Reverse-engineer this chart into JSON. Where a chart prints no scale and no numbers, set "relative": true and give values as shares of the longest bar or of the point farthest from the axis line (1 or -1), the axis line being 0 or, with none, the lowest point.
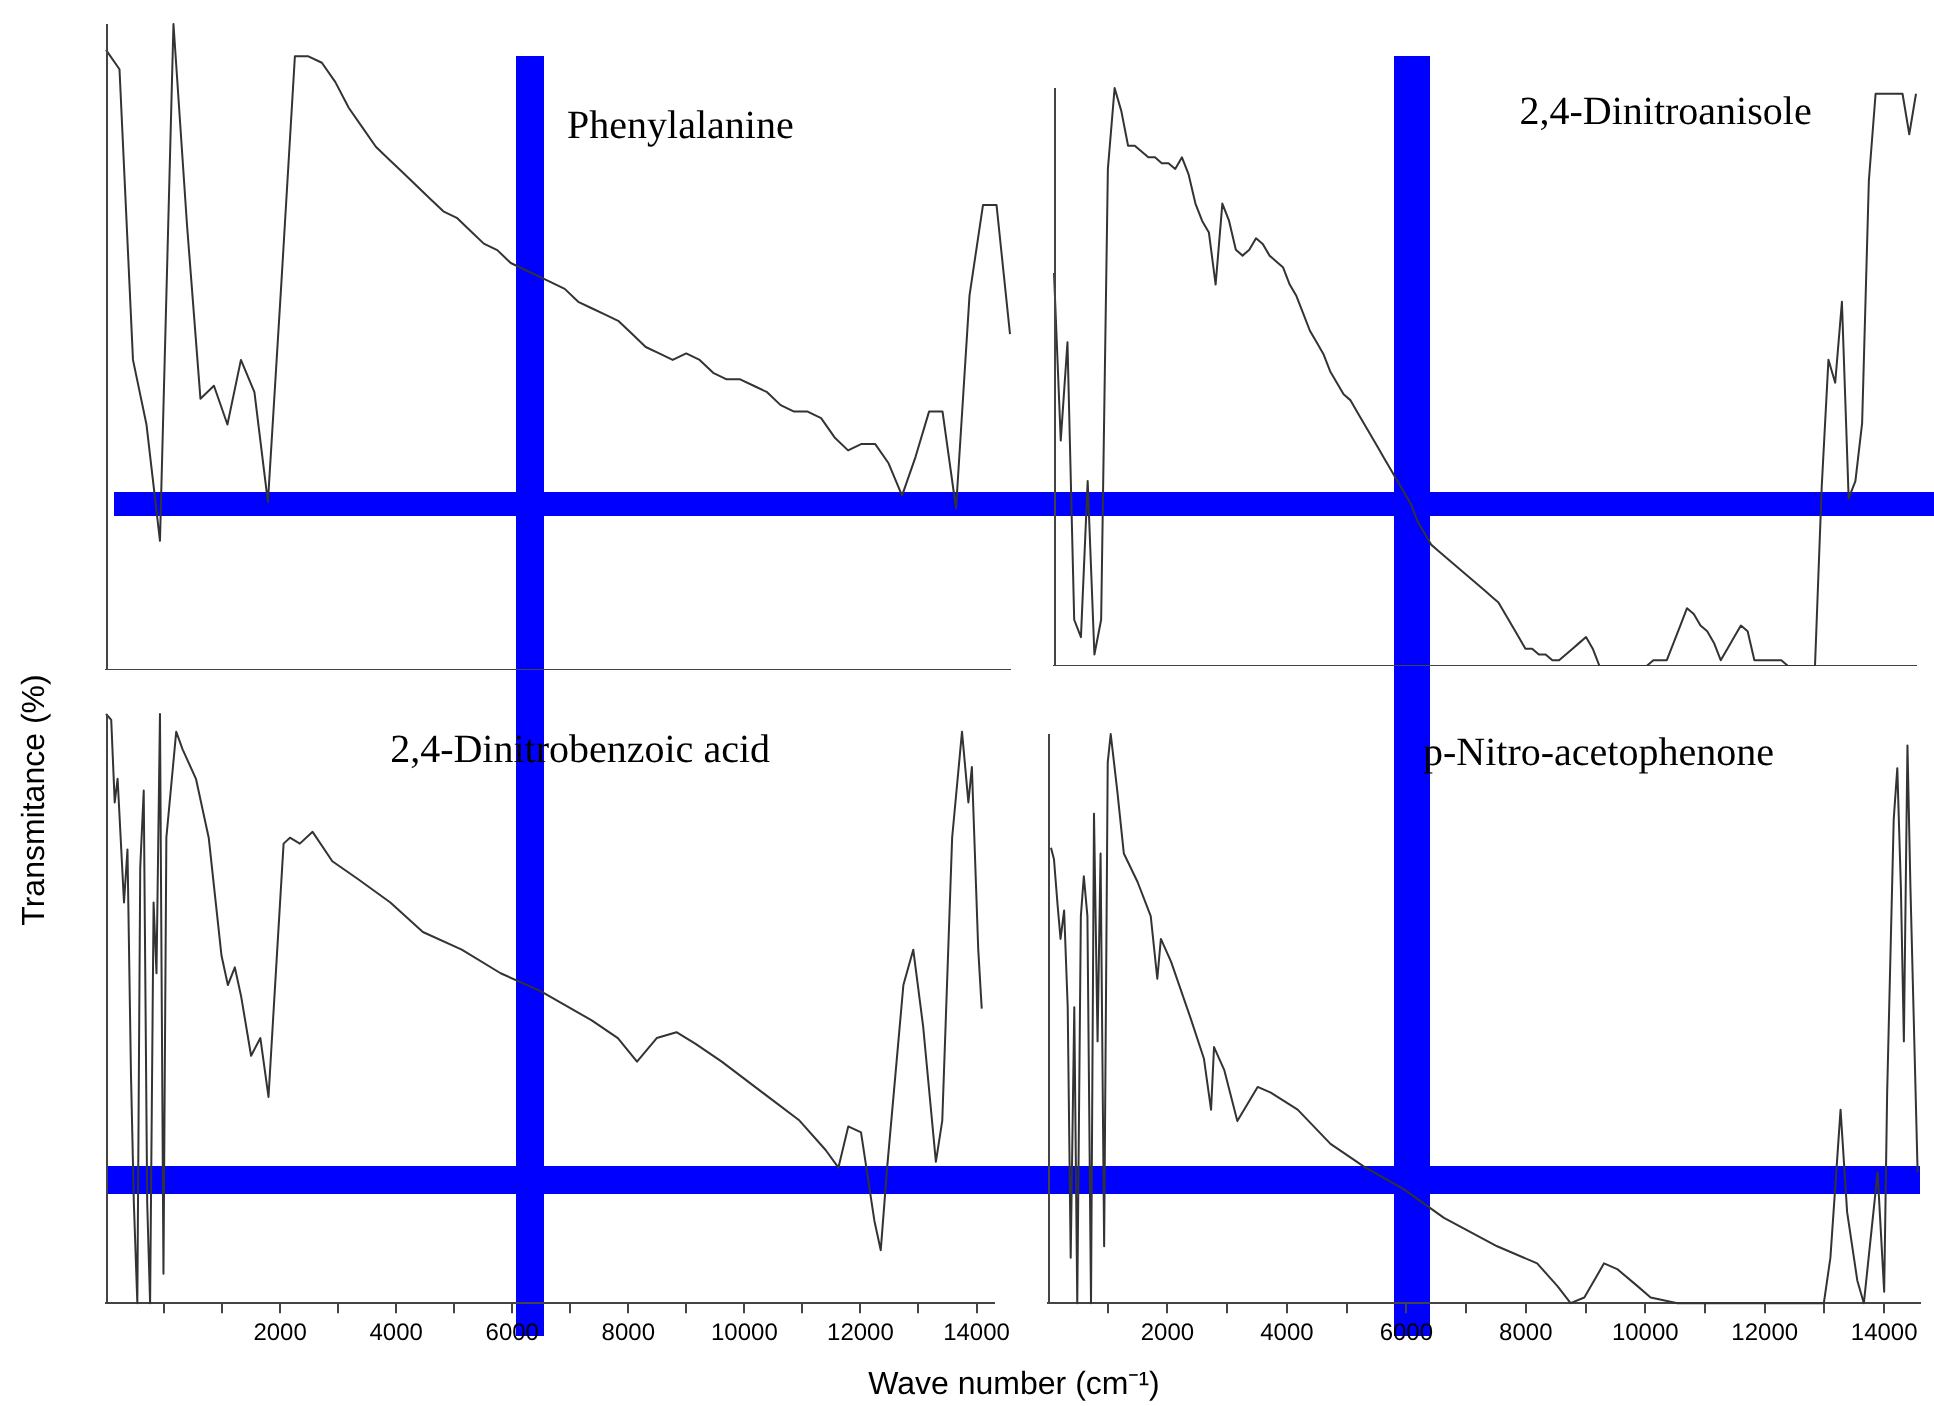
{
  "chart_data": [
    {
      "type": "line",
      "title": "Phenylalanine",
      "ylabel": "Transmitance (%)",
      "relative": true,
      "marker": "none",
      "tick_labels": false,
      "categories": [
        null,
        null,
        null,
        null,
        null,
        null,
        null,
        null,
        null,
        null,
        null,
        null,
        null,
        null,
        null,
        null,
        null,
        null,
        null,
        null,
        null,
        null,
        null,
        null,
        null,
        null,
        null,
        null,
        null,
        null,
        null,
        null,
        null,
        null,
        null,
        null,
        null,
        null,
        null,
        null,
        null,
        null,
        null,
        null,
        null,
        null,
        null,
        null,
        null,
        null,
        null,
        null,
        null,
        null,
        null,
        null,
        null,
        null,
        null,
        null,
        null,
        null,
        null,
        null,
        null,
        null,
        null,
        null
      ],
      "series": [
        {
          "color": "#333333",
          "values": [
            0.96,
            0.93,
            0.48,
            0.38,
            0.2,
            1,
            0.69,
            0.42,
            0.44,
            0.38,
            0.48,
            0.43,
            0.26,
            0.6,
            0.95,
            0.95,
            0.94,
            0.91,
            0.87,
            0.84,
            0.81,
            0.79,
            0.77,
            0.75,
            0.73,
            0.71,
            0.7,
            0.68,
            0.66,
            0.65,
            0.63,
            0.62,
            0.61,
            0.6,
            0.59,
            0.57,
            0.56,
            0.55,
            0.54,
            0.52,
            0.5,
            0.49,
            0.48,
            0.49,
            0.48,
            0.46,
            0.45,
            0.45,
            0.44,
            0.43,
            0.41,
            0.4,
            0.4,
            0.39,
            0.36,
            0.34,
            0.35,
            0.35,
            0.32,
            0.27,
            0.33,
            0.4,
            0.4,
            0.25,
            0.58,
            0.72,
            0.72,
            0.52
          ]
        }
      ]
    },
    {
      "type": "line",
      "title": "2,4-Dinitroanisole",
      "relative": true,
      "marker": "none",
      "tick_labels": false,
      "categories": [
        null,
        null,
        null,
        null,
        null,
        null,
        null,
        null,
        null,
        null,
        null,
        null,
        null,
        null,
        null,
        null,
        null,
        null,
        null,
        null,
        null,
        null,
        null,
        null,
        null,
        null,
        null,
        null,
        null,
        null,
        null,
        null,
        null,
        null,
        null,
        null,
        null,
        null,
        null,
        null,
        null,
        null,
        null,
        null,
        null,
        null,
        null,
        null,
        null,
        null,
        null,
        null,
        null,
        null,
        null,
        null,
        null,
        null,
        null,
        null,
        null,
        null,
        null,
        null,
        null,
        null,
        null,
        null,
        null,
        null,
        null,
        null,
        null,
        null,
        null,
        null,
        null,
        null,
        null,
        null,
        null,
        null,
        null,
        null,
        null,
        null,
        null,
        null,
        null,
        null,
        null,
        null,
        null,
        null,
        null,
        null,
        null,
        null,
        null,
        null,
        null,
        null,
        null,
        null,
        null,
        null,
        null,
        null,
        null,
        null,
        null,
        null,
        null,
        null,
        null,
        null,
        null,
        null,
        null,
        null,
        null,
        null,
        null,
        null,
        null,
        null,
        null,
        null,
        null
      ],
      "series": [
        {
          "color": "#333333",
          "values": [
            0.68,
            0.39,
            0.56,
            0.08,
            0.05,
            0.32,
            0.02,
            0.08,
            0.86,
            1,
            0.96,
            0.9,
            0.9,
            0.89,
            0.88,
            0.88,
            0.87,
            0.87,
            0.86,
            0.88,
            0.85,
            0.8,
            0.77,
            0.75,
            0.66,
            0.8,
            0.77,
            0.72,
            0.71,
            0.72,
            0.74,
            0.73,
            0.71,
            0.7,
            0.69,
            0.66,
            0.64,
            0.61,
            0.58,
            0.56,
            0.54,
            0.51,
            0.49,
            0.47,
            0.46,
            0.44,
            0.42,
            0.4,
            0.38,
            0.36,
            0.34,
            0.32,
            0.3,
            0.28,
            0.25,
            0.23,
            0.21,
            0.2,
            0.19,
            0.18,
            0.17,
            0.16,
            0.15,
            0.14,
            0.13,
            0.12,
            0.11,
            0.09,
            0.07,
            0.05,
            0.03,
            0.03,
            0.02,
            0.02,
            0.01,
            0.01,
            0.02,
            0.03,
            0.04,
            0.05,
            0.03,
            0,
            0,
            0,
            0,
            0,
            0,
            0,
            0,
            0.01,
            0.01,
            0.01,
            0.04,
            0.07,
            0.1,
            0.09,
            0.07,
            0.06,
            0.04,
            0.01,
            0.03,
            0.05,
            0.07,
            0.06,
            0.01,
            0.01,
            0.01,
            0.01,
            0.01,
            0,
            0,
            0,
            0,
            0,
            0.31,
            0.53,
            0.49,
            0.63,
            0.29,
            0.32,
            0.42,
            0.84,
            0.99,
            0.99,
            0.99,
            0.99,
            0.99,
            0.92,
            0.99
          ]
        }
      ]
    },
    {
      "type": "line",
      "title": "2,4-Dinitrobenzoic acid",
      "xlabel": "Wave number (cm⁻¹)",
      "relative": true,
      "marker": "none",
      "tick_labels": "x",
      "xlim": [
        -1000,
        14300
      ],
      "xticks": [
        {
          "value": 0,
          "label": null
        },
        {
          "value": 1000,
          "label": null
        },
        2000,
        {
          "value": 3000,
          "label": null
        },
        4000,
        {
          "value": 5000,
          "label": null
        },
        6000,
        {
          "value": 7000,
          "label": null
        },
        8000,
        {
          "value": 9000,
          "label": null
        },
        10000,
        {
          "value": 11000,
          "label": null
        },
        12000,
        {
          "value": 13000,
          "label": null
        },
        14000
      ],
      "x": [
        -1000,
        -910,
        -850,
        -800,
        -690,
        -630,
        -570,
        -520,
        -460,
        -410,
        -350,
        -290,
        -240,
        -180,
        -130,
        -70,
        -10,
        40,
        210,
        320,
        550,
        770,
        880,
        990,
        1100,
        1220,
        1330,
        1500,
        1660,
        1800,
        1890,
        2060,
        2170,
        2340,
        2560,
        2900,
        3340,
        3900,
        4460,
        5130,
        5800,
        6480,
        7370,
        7820,
        8150,
        8490,
        8830,
        9160,
        9610,
        10280,
        10950,
        11400,
        11620,
        11790,
        12010,
        12240,
        12350,
        12460,
        12740,
        12910,
        13080,
        13300,
        13410,
        13580,
        13750,
        13860,
        13920,
        14030,
        14090
      ],
      "series": [
        {
          "color": "#333333",
          "values": [
            1,
            0.99,
            0.85,
            0.89,
            0.68,
            0.77,
            0.39,
            0.17,
            0,
            0.74,
            0.87,
            0.17,
            0,
            0.68,
            0.56,
            1,
            0.05,
            0.79,
            0.97,
            0.94,
            0.89,
            0.79,
            0.69,
            0.59,
            0.54,
            0.57,
            0.52,
            0.42,
            0.45,
            0.35,
            0.5,
            0.78,
            0.79,
            0.78,
            0.8,
            0.75,
            0.72,
            0.68,
            0.63,
            0.6,
            0.56,
            0.53,
            0.48,
            0.45,
            0.41,
            0.45,
            0.46,
            0.44,
            0.41,
            0.36,
            0.31,
            0.26,
            0.23,
            0.3,
            0.29,
            0.14,
            0.09,
            0.23,
            0.54,
            0.6,
            0.47,
            0.24,
            0.31,
            0.79,
            0.97,
            0.85,
            0.91,
            0.6,
            0.5
          ]
        }
      ]
    },
    {
      "type": "line",
      "title": "p-Nitro-acetophenone",
      "relative": true,
      "marker": "none",
      "tick_labels": "x",
      "xlim": [
        0,
        14600
      ],
      "xticks": [
        {
          "value": 1000,
          "label": null
        },
        2000,
        {
          "value": 3000,
          "label": null
        },
        4000,
        {
          "value": 5000,
          "label": null
        },
        6000,
        {
          "value": 7000,
          "label": null
        },
        8000,
        {
          "value": 9000,
          "label": null
        },
        10000,
        {
          "value": 11000,
          "label": null
        },
        12000,
        {
          "value": 13000,
          "label": null
        },
        14000
      ],
      "x": [
        50,
        100,
        160,
        210,
        270,
        330,
        380,
        440,
        490,
        550,
        600,
        660,
        720,
        770,
        830,
        880,
        940,
        1000,
        1050,
        1160,
        1270,
        1500,
        1720,
        1830,
        1890,
        2060,
        2390,
        2610,
        2730,
        2780,
        2950,
        3170,
        3510,
        3730,
        4180,
        4730,
        5290,
        5960,
        6630,
        7520,
        8190,
        8530,
        8750,
        8980,
        9310,
        9530,
        9870,
        10090,
        10540,
        10870,
        12990,
        13100,
        13270,
        13380,
        13550,
        13660,
        13890,
        14000,
        14050,
        14160,
        14220,
        14280,
        14330,
        14390,
        14440,
        14560
      ],
      "series": [
        {
          "color": "#333333",
          "values": [
            0.8,
            0.78,
            0.7,
            0.64,
            0.69,
            0.52,
            0.08,
            0.52,
            0,
            0.68,
            0.75,
            0.68,
            0,
            0.86,
            0.46,
            0.79,
            0.1,
            0.95,
            1,
            0.9,
            0.79,
            0.74,
            0.68,
            0.57,
            0.64,
            0.6,
            0.5,
            0.43,
            0.34,
            0.45,
            0.41,
            0.32,
            0.38,
            0.37,
            0.34,
            0.28,
            0.24,
            0.2,
            0.15,
            0.1,
            0.07,
            0.03,
            0,
            0.01,
            0.07,
            0.06,
            0.03,
            0.01,
            0,
            0,
            0,
            0.08,
            0.34,
            0.16,
            0.04,
            0,
            0.23,
            0.02,
            0.37,
            0.85,
            0.94,
            0.73,
            0.46,
            0.98,
            0.73,
            0.23
          ]
        }
      ]
    }
  ]
}
